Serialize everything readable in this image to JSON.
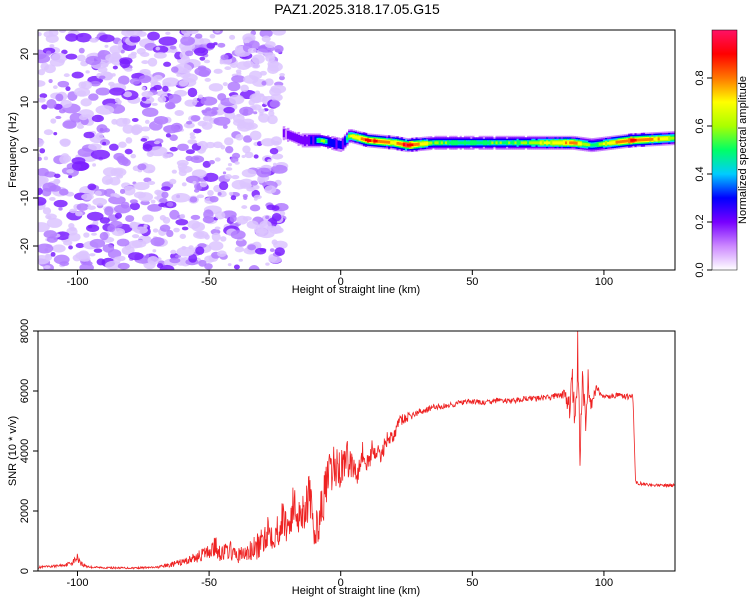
{
  "title": "PAZ1.2025.318.17.05.G15",
  "colors": {
    "snr_line": "#ee2222",
    "spectrogram_noise": "#7733ee",
    "colorbar_stops": [
      "#ffffff",
      "#cc88ff",
      "#7700ff",
      "#0000ff",
      "#00ccff",
      "#00ff66",
      "#aaff00",
      "#ffff00",
      "#ff7700",
      "#ff0000",
      "#ff1166"
    ]
  },
  "chart_data": [
    {
      "type": "heatmap",
      "name": "spectrogram",
      "xlabel": "Height of straight line (km)",
      "ylabel": "Frequency (Hz)",
      "xlim": [
        -115,
        127
      ],
      "ylim": [
        -25,
        25
      ],
      "xticks": [
        -100,
        -50,
        0,
        50,
        100
      ],
      "yticks": [
        -20,
        -10,
        0,
        10,
        20
      ],
      "xtick_labels": [
        "-100",
        "-50",
        "0",
        "50",
        "100"
      ],
      "ytick_labels": [
        "-20",
        "-10",
        "0",
        "10",
        "20"
      ],
      "colorbar": {
        "label": "Normalized spectral amplitude",
        "range": [
          0,
          1
        ],
        "ticks": [
          0.0,
          0.2,
          0.4,
          0.6,
          0.8
        ],
        "tick_labels": [
          "0.0",
          "0.2",
          "0.4",
          "0.6",
          "0.8"
        ]
      },
      "noise_region": {
        "x": [
          -115,
          -22
        ],
        "y": [
          -25,
          25
        ],
        "amplitude": "0.0-0.15"
      },
      "signal_ridge": [
        {
          "x": -22,
          "freq": 3.5,
          "amp": 0.25
        },
        {
          "x": -15,
          "freq": 2.0,
          "amp": 0.35
        },
        {
          "x": -8,
          "freq": 2.0,
          "amp": 0.55
        },
        {
          "x": 0,
          "freq": 1.0,
          "amp": 0.4
        },
        {
          "x": 3,
          "freq": 3.0,
          "amp": 0.6
        },
        {
          "x": 10,
          "freq": 2.0,
          "amp": 0.9
        },
        {
          "x": 20,
          "freq": 1.5,
          "amp": 0.75
        },
        {
          "x": 25,
          "freq": 1.0,
          "amp": 0.95
        },
        {
          "x": 35,
          "freq": 1.5,
          "amp": 0.55
        },
        {
          "x": 50,
          "freq": 1.5,
          "amp": 0.5
        },
        {
          "x": 70,
          "freq": 1.5,
          "amp": 0.55
        },
        {
          "x": 88,
          "freq": 1.5,
          "amp": 0.8
        },
        {
          "x": 95,
          "freq": 1.0,
          "amp": 0.5
        },
        {
          "x": 110,
          "freq": 2.0,
          "amp": 0.9
        },
        {
          "x": 127,
          "freq": 2.5,
          "amp": 0.6
        }
      ]
    },
    {
      "type": "line",
      "name": "snr",
      "xlabel": "Height of straight line (km)",
      "ylabel": "SNR (10 * v/v)",
      "xlim": [
        -115,
        127
      ],
      "ylim": [
        0,
        8000
      ],
      "xticks": [
        -100,
        -50,
        0,
        50,
        100
      ],
      "yticks": [
        0,
        2000,
        4000,
        6000,
        8000
      ],
      "xtick_labels": [
        "-100",
        "-50",
        "0",
        "50",
        "100"
      ],
      "ytick_labels": [
        "0",
        "2000",
        "4000",
        "6000",
        "8000"
      ],
      "x": [
        -115,
        -110,
        -105,
        -102,
        -100,
        -98,
        -95,
        -90,
        -80,
        -70,
        -65,
        -60,
        -55,
        -50,
        -48,
        -45,
        -42,
        -40,
        -35,
        -30,
        -28,
        -25,
        -22,
        -20,
        -18,
        -15,
        -12,
        -10,
        -8,
        -5,
        -2,
        0,
        2,
        4,
        6,
        8,
        10,
        12,
        15,
        18,
        20,
        22,
        25,
        30,
        35,
        40,
        45,
        50,
        55,
        60,
        65,
        70,
        75,
        80,
        85,
        87,
        88,
        89,
        90,
        91,
        92,
        93,
        94,
        95,
        97,
        100,
        105,
        110,
        111,
        112,
        115,
        120,
        127
      ],
      "y": [
        120,
        150,
        200,
        280,
        450,
        200,
        130,
        110,
        100,
        120,
        200,
        300,
        450,
        650,
        800,
        600,
        700,
        500,
        600,
        900,
        1400,
        1200,
        1700,
        1500,
        2100,
        1900,
        2500,
        1200,
        1800,
        3000,
        3500,
        3400,
        3800,
        3600,
        3300,
        4000,
        3500,
        4100,
        3800,
        4500,
        4400,
        5000,
        5100,
        5300,
        5450,
        5500,
        5600,
        5650,
        5600,
        5700,
        5650,
        5750,
        5750,
        5800,
        5900,
        5400,
        6600,
        4600,
        7200,
        3900,
        6900,
        4600,
        6400,
        5500,
        6100,
        5800,
        5850,
        5800,
        5850,
        2950,
        2900,
        2850,
        2850
      ],
      "noise_amp": [
        40,
        40,
        40,
        80,
        150,
        80,
        40,
        30,
        30,
        30,
        80,
        120,
        180,
        250,
        400,
        300,
        300,
        250,
        350,
        500,
        600,
        500,
        700,
        600,
        800,
        700,
        900,
        500,
        700,
        800,
        800,
        700,
        600,
        600,
        500,
        500,
        400,
        350,
        300,
        250,
        200,
        200,
        150,
        120,
        100,
        100,
        100,
        90,
        90,
        90,
        90,
        90,
        90,
        100,
        150,
        400,
        600,
        800,
        900,
        800,
        700,
        500,
        400,
        300,
        150,
        100,
        90,
        90,
        60,
        60,
        50,
        50,
        50
      ]
    }
  ]
}
